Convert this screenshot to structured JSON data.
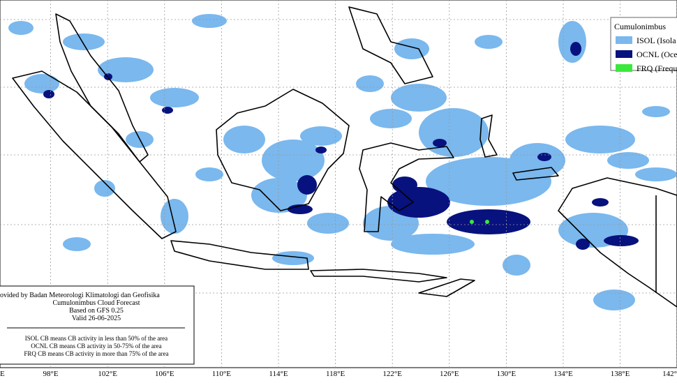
{
  "legend": {
    "title": "Cumulonimbus",
    "items": [
      {
        "label": "ISOL (Isola",
        "color": "#7ab8ee"
      },
      {
        "label": "OCNL (Oce",
        "color": "#07127e"
      },
      {
        "label": "FRQ (Freque",
        "color": "#3ce83c"
      }
    ]
  },
  "info_box": {
    "lines": [
      "ovided by Badan Meteorologi Klimatologi dan Geofisika",
      "Cumulonimbus Cloud Forecast",
      "Based on GFS 0.25",
      "Valid 26-06-2025"
    ],
    "notes": [
      "ISOL CB means CB activity in less than 50% of the area",
      "OCNL CB means CB activity in 50-75% of the area",
      "FRQ CB means CB activity in more than 75% of the area"
    ]
  },
  "longitude_labels": [
    "E",
    "98°E",
    "102°E",
    "106°E",
    "110°E",
    "114°E",
    "118°E",
    "122°E",
    "126°E",
    "130°E",
    "134°E",
    "138°E",
    "142°"
  ]
}
